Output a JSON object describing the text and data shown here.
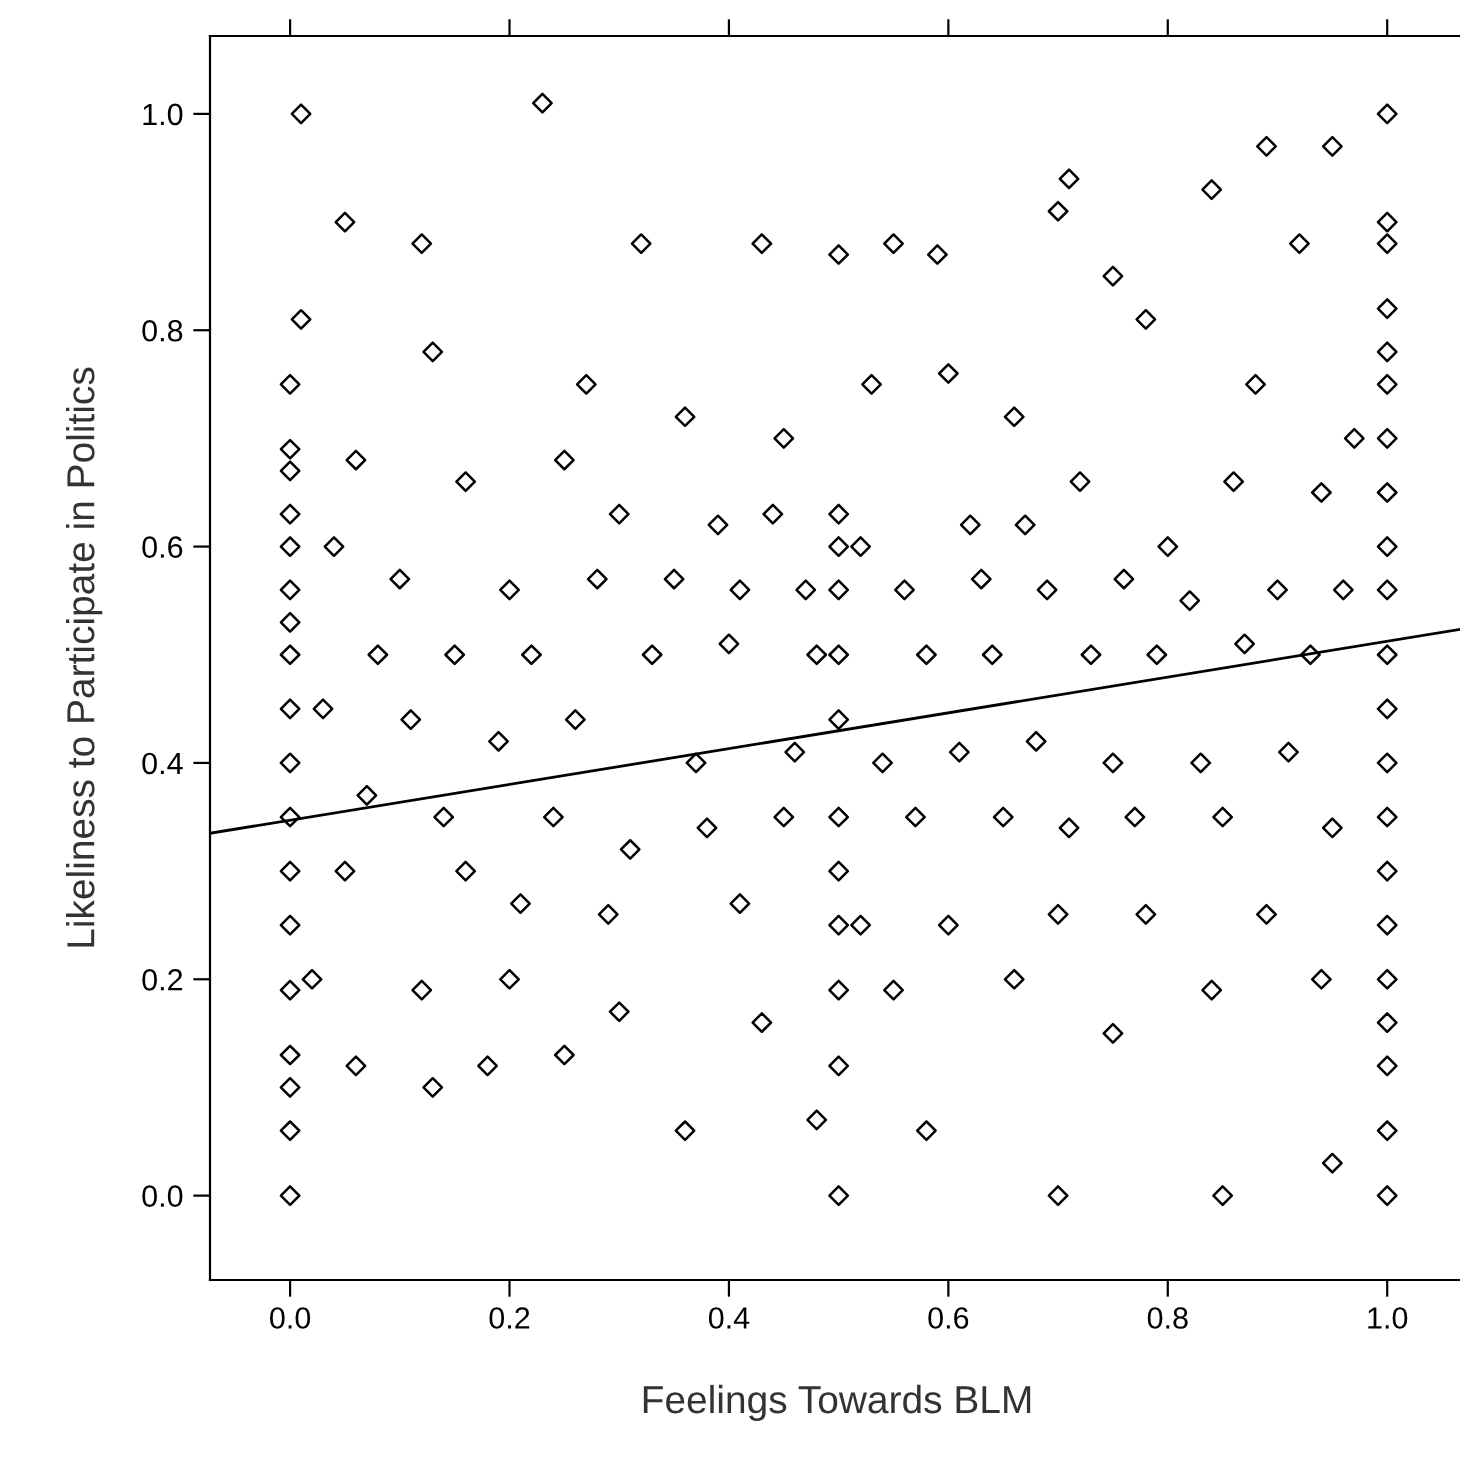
{
  "chart_data": {
    "type": "scatter",
    "xlabel": "Feelings Towards BLM",
    "ylabel": "Likeliness to Participate in Politics",
    "xlim": [
      -0.073,
      1.07
    ],
    "ylim": [
      -0.078,
      1.072
    ],
    "xticks": [
      {
        "value": 0,
        "label": "0.0"
      },
      {
        "value": 0.2,
        "label": "0.2"
      },
      {
        "value": 0.4,
        "label": "0.4"
      },
      {
        "value": 0.6,
        "label": "0.6"
      },
      {
        "value": 0.8,
        "label": "0.8"
      },
      {
        "value": 1,
        "label": "1.0"
      }
    ],
    "yticks": [
      {
        "value": 0,
        "label": "0.0"
      },
      {
        "value": 0.2,
        "label": "0.2"
      },
      {
        "value": 0.4,
        "label": "0.4"
      },
      {
        "value": 0.6,
        "label": "0.6"
      },
      {
        "value": 0.8,
        "label": "0.8"
      },
      {
        "value": 1,
        "label": "1.0"
      }
    ],
    "grid": false,
    "tick_labels": "xy",
    "series": [
      {
        "type": "scatter",
        "color": "#000000",
        "marker": "diamond",
        "x": [
          0,
          0,
          0,
          0,
          0,
          0,
          0,
          0,
          0,
          0,
          0,
          0,
          0,
          0,
          0,
          0,
          0,
          0,
          0.01,
          1,
          1,
          1,
          1,
          1,
          1,
          1,
          1,
          1,
          1,
          1,
          1,
          1,
          1,
          1,
          1,
          1,
          1,
          1,
          1,
          1,
          0.5,
          0.5,
          0.5,
          0.5,
          0.5,
          0.5,
          0.5,
          0.5,
          0.5,
          0.5,
          0.5,
          0.5,
          0.01,
          0.05,
          0.12,
          0.23,
          0.32,
          0.43,
          0.55,
          0.59,
          0.7,
          0.71,
          0.75,
          0.84,
          0.89,
          0.92,
          0.95,
          0.13,
          0.27,
          0.36,
          0.45,
          0.53,
          0.6,
          0.66,
          0.78,
          0.88,
          0.97,
          0.06,
          0.16,
          0.25,
          0.3,
          0.39,
          0.44,
          0.52,
          0.62,
          0.67,
          0.72,
          0.8,
          0.86,
          0.94,
          0.04,
          0.1,
          0.2,
          0.28,
          0.35,
          0.41,
          0.47,
          0.56,
          0.63,
          0.69,
          0.76,
          0.82,
          0.9,
          0.96,
          0.08,
          0.15,
          0.22,
          0.33,
          0.4,
          0.48,
          0.58,
          0.64,
          0.73,
          0.79,
          0.87,
          0.93,
          0.03,
          0.11,
          0.19,
          0.26,
          0.37,
          0.46,
          0.54,
          0.61,
          0.68,
          0.75,
          0.83,
          0.91,
          0.07,
          0.14,
          0.24,
          0.31,
          0.38,
          0.45,
          0.57,
          0.65,
          0.71,
          0.77,
          0.85,
          0.95,
          0.05,
          0.16,
          0.21,
          0.29,
          0.41,
          0.52,
          0.6,
          0.7,
          0.78,
          0.89,
          0.02,
          0.12,
          0.2,
          0.3,
          0.43,
          0.55,
          0.66,
          0.75,
          0.84,
          0.94,
          0.06,
          0.13,
          0.18,
          0.25,
          0.36,
          0.48,
          0.58,
          0.7,
          0.85,
          0.95
        ],
        "values": [
          0,
          0.06,
          0.1,
          0.13,
          0.19,
          0.25,
          0.3,
          0.35,
          0.4,
          0.45,
          0.5,
          0.53,
          0.56,
          0.6,
          0.63,
          0.67,
          0.69,
          0.75,
          1.0,
          0,
          0.06,
          0.12,
          0.16,
          0.2,
          0.25,
          0.3,
          0.35,
          0.4,
          0.45,
          0.5,
          0.56,
          0.6,
          0.65,
          0.7,
          0.75,
          0.78,
          0.82,
          0.88,
          0.9,
          1.0,
          0,
          0.12,
          0.19,
          0.25,
          0.3,
          0.35,
          0.44,
          0.5,
          0.56,
          0.6,
          0.63,
          0.87,
          0.81,
          0.9,
          0.88,
          1.01,
          0.88,
          0.88,
          0.88,
          0.87,
          0.91,
          0.94,
          0.85,
          0.93,
          0.97,
          0.88,
          0.97,
          0.78,
          0.75,
          0.72,
          0.7,
          0.75,
          0.76,
          0.72,
          0.81,
          0.75,
          0.7,
          0.68,
          0.66,
          0.68,
          0.63,
          0.62,
          0.63,
          0.6,
          0.62,
          0.62,
          0.66,
          0.6,
          0.66,
          0.65,
          0.6,
          0.57,
          0.56,
          0.57,
          0.57,
          0.56,
          0.56,
          0.56,
          0.57,
          0.56,
          0.57,
          0.55,
          0.56,
          0.56,
          0.5,
          0.5,
          0.5,
          0.5,
          0.51,
          0.5,
          0.5,
          0.5,
          0.5,
          0.5,
          0.51,
          0.5,
          0.45,
          0.44,
          0.42,
          0.44,
          0.4,
          0.41,
          0.4,
          0.41,
          0.42,
          0.4,
          0.4,
          0.41,
          0.37,
          0.35,
          0.35,
          0.32,
          0.34,
          0.35,
          0.35,
          0.35,
          0.34,
          0.35,
          0.35,
          0.34,
          0.3,
          0.3,
          0.27,
          0.26,
          0.27,
          0.25,
          0.25,
          0.26,
          0.26,
          0.26,
          0.2,
          0.19,
          0.2,
          0.17,
          0.16,
          0.19,
          0.2,
          0.15,
          0.19,
          0.2,
          0.12,
          0.1,
          0.12,
          0.13,
          0.06,
          0.07,
          0.06,
          0.0,
          0.0,
          0.03
        ]
      },
      {
        "type": "line",
        "color": "#000000",
        "marker": "none",
        "x": [
          -0.073,
          1.07
        ],
        "values": [
          0.335,
          0.524
        ]
      }
    ]
  }
}
